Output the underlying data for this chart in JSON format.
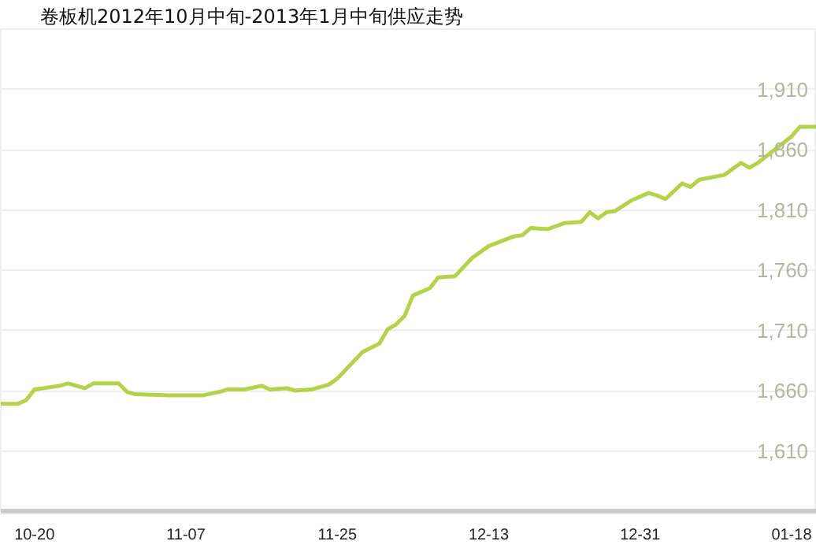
{
  "chart_data": {
    "type": "line",
    "title": "卷板机2012年10月中旬-2013年1月中旬供应走势",
    "x": [
      "2012-10-16",
      "2012-10-18",
      "2012-10-19",
      "2012-10-20",
      "2012-10-21",
      "2012-10-23",
      "2012-10-24",
      "2012-10-26",
      "2012-10-27",
      "2012-10-30",
      "2012-10-31",
      "2012-11-01",
      "2012-11-05",
      "2012-11-09",
      "2012-11-11",
      "2012-11-12",
      "2012-11-14",
      "2012-11-16",
      "2012-11-17",
      "2012-11-19",
      "2012-11-20",
      "2012-11-22",
      "2012-11-24",
      "2012-11-25",
      "2012-11-28",
      "2012-11-30",
      "2012-12-01",
      "2012-12-02",
      "2012-12-03",
      "2012-12-04",
      "2012-12-06",
      "2012-12-07",
      "2012-12-09",
      "2012-12-11",
      "2012-12-13",
      "2012-12-16",
      "2012-12-17",
      "2012-12-18",
      "2012-12-20",
      "2012-12-22",
      "2012-12-24",
      "2012-12-25",
      "2012-12-26",
      "2012-12-27",
      "2012-12-28",
      "2012-12-30",
      "2013-01-01",
      "2013-01-02",
      "2013-01-03",
      "2013-01-05",
      "2013-01-06",
      "2013-01-07",
      "2013-01-10",
      "2013-01-12",
      "2013-01-13",
      "2013-01-14",
      "2013-01-18",
      "2013-01-19",
      "2013-01-20",
      "2013-01-21"
    ],
    "series": [
      {
        "color": "#b5d34a",
        "values": [
          1649,
          1649,
          1652,
          1661,
          1662,
          1664,
          1666,
          1662,
          1666,
          1666,
          1659,
          1657,
          1656,
          1656,
          1659,
          1661,
          1661,
          1664,
          1661,
          1662,
          1660,
          1661,
          1665,
          1670,
          1692,
          1699,
          1711,
          1715,
          1722,
          1739,
          1745,
          1754,
          1755,
          1770,
          1780,
          1788,
          1789,
          1795,
          1794,
          1799,
          1800,
          1808,
          1803,
          1808,
          1809,
          1818,
          1824,
          1822,
          1819,
          1832,
          1829,
          1835,
          1839,
          1849,
          1845,
          1849,
          1871,
          1879,
          1879,
          1879
        ]
      }
    ],
    "xlim": [
      "2012-10-16",
      "2013-01-21"
    ],
    "xticks": [
      {
        "value": "2012-10-20",
        "label": "10-20"
      },
      {
        "value": "2012-11-07",
        "label": "11-07"
      },
      {
        "value": "2012-11-25",
        "label": "11-25"
      },
      {
        "value": "2012-12-13",
        "label": "12-13"
      },
      {
        "value": "2012-12-31",
        "label": "12-31"
      },
      {
        "value": "2013-01-18",
        "label": "01-18"
      }
    ],
    "ylim": [
      1560,
      1960
    ],
    "yticks": [
      {
        "value": 1610,
        "label": "1,610"
      },
      {
        "value": 1660,
        "label": "1,660"
      },
      {
        "value": 1710,
        "label": "1,710"
      },
      {
        "value": 1760,
        "label": "1,760"
      },
      {
        "value": 1810,
        "label": "1,810"
      },
      {
        "value": 1860,
        "label": "1,860"
      },
      {
        "value": 1910,
        "label": "1,910"
      }
    ],
    "grid": "y",
    "marker": "none",
    "line_style": "solid"
  }
}
